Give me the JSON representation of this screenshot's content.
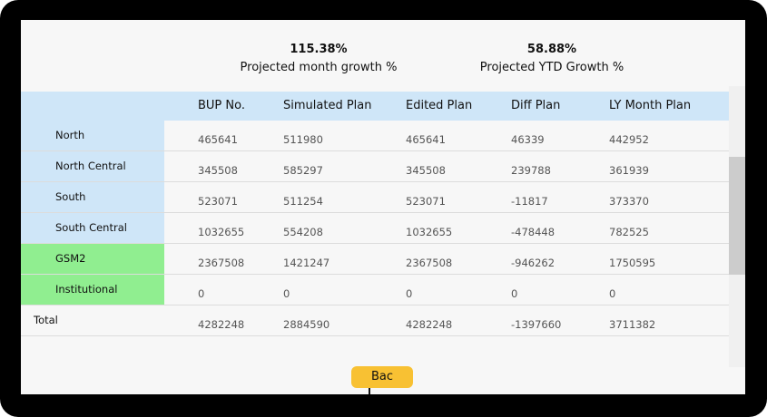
{
  "kpis": {
    "month": {
      "value": "115.38%",
      "label": "Projected month growth %"
    },
    "ytd": {
      "value": "58.88%",
      "label": "Projected YTD Growth %"
    }
  },
  "table": {
    "headers": [
      "BUP No.",
      "Simulated Plan",
      "Edited Plan",
      "Diff Plan",
      "LY Month Plan"
    ],
    "rows": [
      {
        "label": "North",
        "values": [
          "465641",
          "511980",
          "465641",
          "46339",
          "442952"
        ]
      },
      {
        "label": "North Central",
        "values": [
          "345508",
          "585297",
          "345508",
          "239788",
          "361939"
        ]
      },
      {
        "label": "South",
        "values": [
          "523071",
          "511254",
          "523071",
          "-11817",
          "373370"
        ]
      },
      {
        "label": "South Central",
        "values": [
          "1032655",
          "554208",
          "1032655",
          "-478448",
          "782525"
        ]
      },
      {
        "label": "GSM2",
        "values": [
          "2367508",
          "1421247",
          "2367508",
          "-946262",
          "1750595"
        ]
      },
      {
        "label": "Institutional",
        "values": [
          "0",
          "0",
          "0",
          "0",
          "0"
        ]
      },
      {
        "label": "Total",
        "values": [
          "4282248",
          "2884590",
          "4282248",
          "-1397660",
          "3711382"
        ]
      }
    ]
  },
  "back_button": {
    "label": "Bac"
  },
  "colors": {
    "header_blue": "#cfe6f8",
    "group_green": "#90ee90",
    "button_yellow": "#f8c133"
  }
}
